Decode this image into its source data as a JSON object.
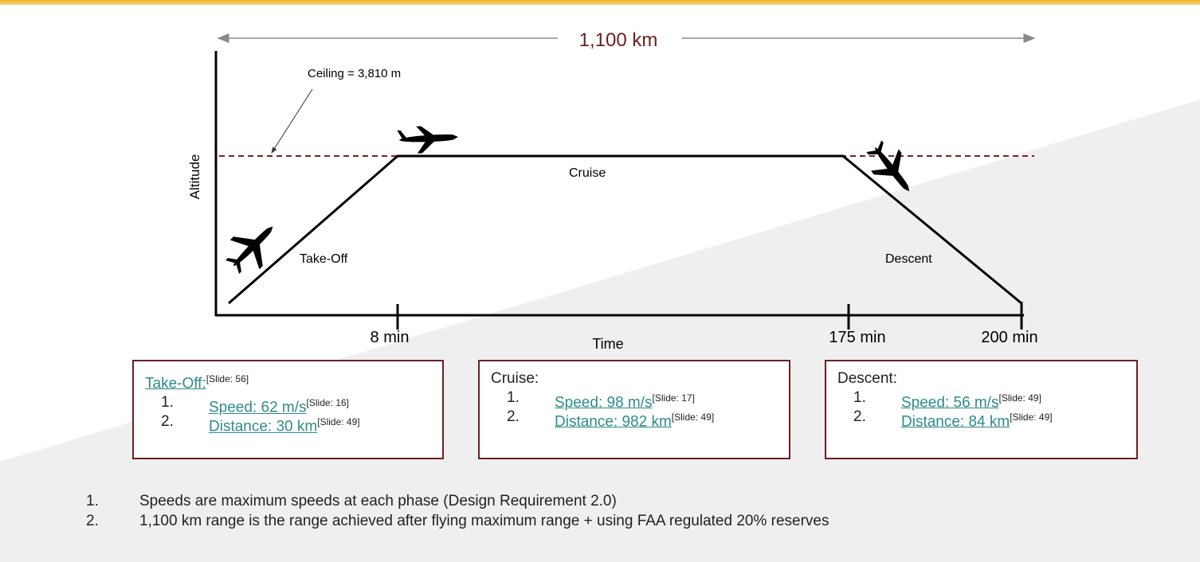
{
  "colors": {
    "accent": "#f0b429",
    "maroon": "#6b1f1f",
    "link": "#2e8b8b",
    "band": "#efefef"
  },
  "diagram": {
    "range_label": "1,100 km",
    "ceiling_label": "Ceiling = 3,810 m",
    "y_axis_label": "Altitude",
    "x_axis_label": "Time",
    "ticks": [
      "8 min",
      "175 min",
      "200 min"
    ],
    "phase_labels": {
      "takeoff": "Take-Off",
      "cruise": "Cruise",
      "descent": "Descent"
    }
  },
  "boxes": {
    "takeoff": {
      "title": "Take-Off:",
      "title_ref": "[Slide: 56]",
      "items": [
        {
          "num": "1.",
          "text": "Speed: 62 m/s",
          "ref": "[Slide: 16]"
        },
        {
          "num": "2.",
          "text": "Distance: 30 km",
          "ref": "[Slide: 49]"
        }
      ]
    },
    "cruise": {
      "title": "Cruise:",
      "items": [
        {
          "num": "1.",
          "text": "Speed: 98 m/s",
          "ref": "[Slide: 17]"
        },
        {
          "num": "2.",
          "text": "Distance: 982 km",
          "ref": "[Slide: 49]"
        }
      ]
    },
    "descent": {
      "title": "Descent:",
      "items": [
        {
          "num": "1.",
          "text": "Speed: 56 m/s",
          "ref": "[Slide: 49]"
        },
        {
          "num": "2.",
          "text": "Distance: 84 km",
          "ref": "[Slide: 49]"
        }
      ]
    }
  },
  "notes": [
    {
      "num": "1.",
      "text": "Speeds are maximum speeds at each phase (Design Requirement 2.0)"
    },
    {
      "num": "2.",
      "text": "1,100 km range is the range achieved after flying maximum range + using FAA regulated 20% reserves"
    }
  ]
}
